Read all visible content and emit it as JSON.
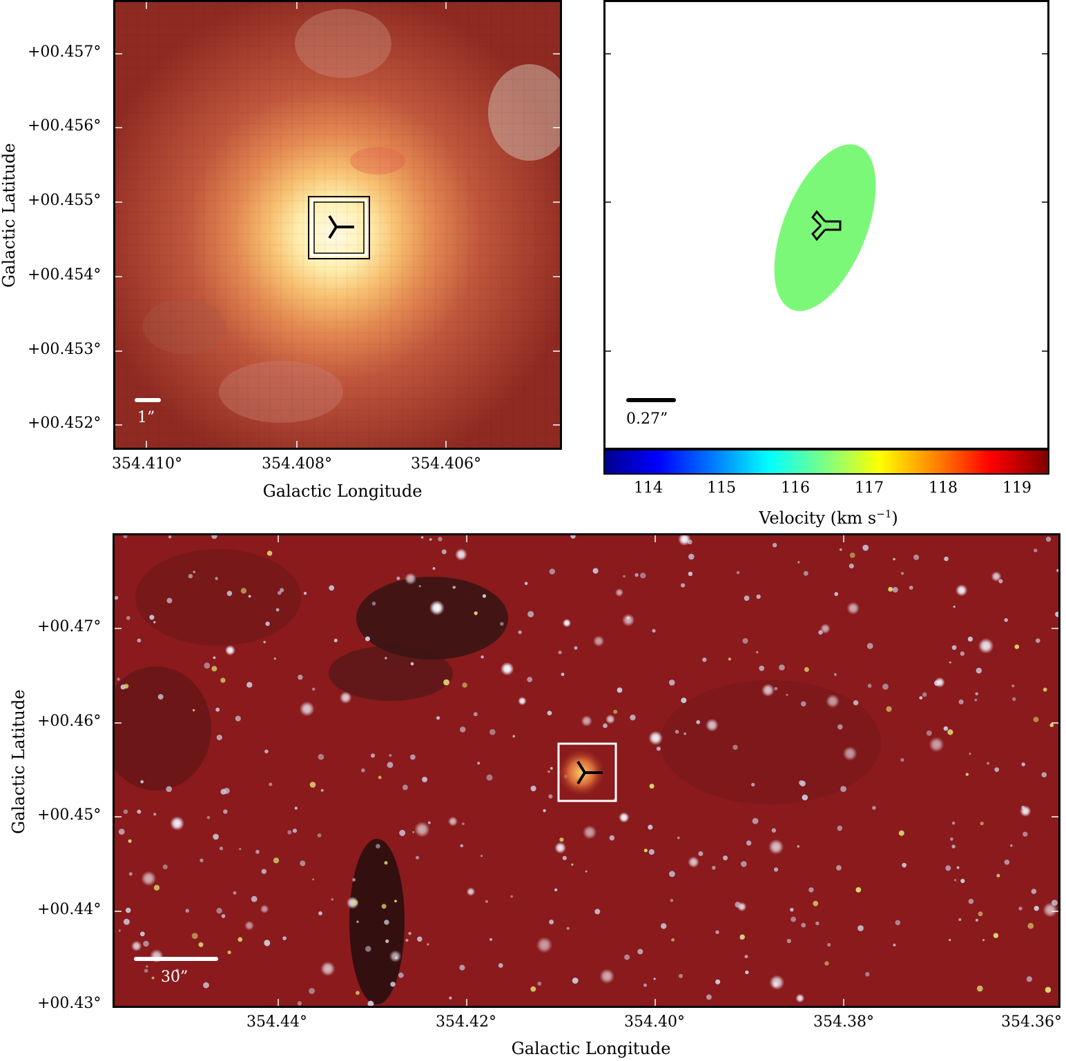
{
  "top_left": {
    "y_ticks": [
      "+00.457°",
      "+00.456°",
      "+00.455°",
      "+00.454°",
      "+00.453°",
      "+00.452°"
    ],
    "x_ticks": [
      "354.410°",
      "354.408°",
      "354.406°"
    ],
    "ylabel": "Galactic Latitude",
    "xlabel": "Galactic Longitude",
    "scalebar_label": "1”"
  },
  "top_right": {
    "scalebar_label": "0.27”",
    "ellipse_color": "#7cf878",
    "colorbar": {
      "ticks": [
        "114",
        "115",
        "116",
        "117",
        "118",
        "119"
      ],
      "label": "Velocity (km s",
      "label_sup": "−1",
      "label_end": ")"
    }
  },
  "bottom": {
    "y_ticks": [
      "+00.47°",
      "+00.46°",
      "+00.45°",
      "+00.44°",
      "+00.43°"
    ],
    "x_ticks": [
      "354.44°",
      "354.42°",
      "354.40°",
      "354.38°",
      "354.36°"
    ],
    "ylabel": "Galactic Latitude",
    "xlabel": "Galactic Longitude",
    "scalebar_label": "30”"
  }
}
